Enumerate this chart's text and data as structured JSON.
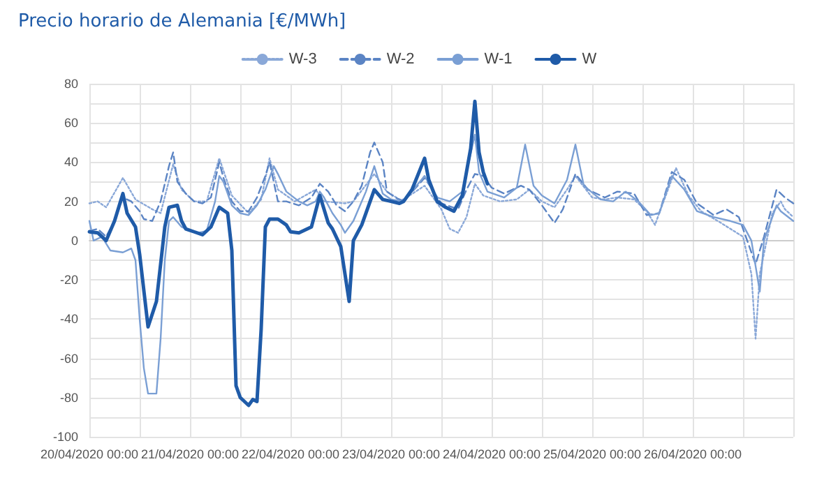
{
  "chart_data": {
    "type": "line",
    "title": "Precio horario de Alemania [€/MWh]",
    "xlim": [
      "2020-04-20T00:00",
      "2020-04-27T00:00"
    ],
    "xticks": [
      {
        "value": "2020-04-20T00:00",
        "label": "20/04/2020 00:00"
      },
      {
        "value": "2020-04-20T12:00",
        "label": null
      },
      {
        "value": "2020-04-21T00:00",
        "label": "21/04/2020 00:00"
      },
      {
        "value": "2020-04-21T12:00",
        "label": null
      },
      {
        "value": "2020-04-22T00:00",
        "label": "22/04/2020 00:00"
      },
      {
        "value": "2020-04-22T12:00",
        "label": null
      },
      {
        "value": "2020-04-23T00:00",
        "label": "23/04/2020 00:00"
      },
      {
        "value": "2020-04-23T12:00",
        "label": null
      },
      {
        "value": "2020-04-24T00:00",
        "label": "24/04/2020 00:00"
      },
      {
        "value": "2020-04-24T12:00",
        "label": null
      },
      {
        "value": "2020-04-25T00:00",
        "label": "25/04/2020 00:00"
      },
      {
        "value": "2020-04-25T12:00",
        "label": null
      },
      {
        "value": "2020-04-26T00:00",
        "label": "26/04/2020 00:00"
      },
      {
        "value": "2020-04-26T12:00",
        "label": null
      },
      {
        "value": "2020-04-27T00:00",
        "label": null
      }
    ],
    "ylim": [
      -100,
      80
    ],
    "yticks": [
      -100,
      {
        "value": -90,
        "label": null
      },
      -80,
      {
        "value": -70,
        "label": null
      },
      -60,
      {
        "value": -50,
        "label": null
      },
      -40,
      {
        "value": -30,
        "label": null
      },
      -20,
      {
        "value": -10,
        "label": null
      },
      0,
      {
        "value": 10,
        "label": null
      },
      20,
      {
        "value": 30,
        "label": null
      },
      40,
      {
        "value": 50,
        "label": null
      },
      60,
      {
        "value": 70,
        "label": null
      },
      80
    ],
    "grid": true,
    "legend": "top",
    "marker": "none",
    "series": [
      {
        "name": "W-3",
        "color": "#8aa8d8",
        "line_style": "dotted",
        "x": [
          "2020-04-20T00:00",
          "2020-04-20T02:00",
          "2020-04-20T04:00",
          "2020-04-20T08:00",
          "2020-04-20T11:00",
          "2020-04-20T15:00",
          "2020-04-20T17:00",
          "2020-04-20T20:00",
          "2020-04-20T22:00",
          "2020-04-21T01:00",
          "2020-04-21T04:00",
          "2020-04-21T07:00",
          "2020-04-21T10:00",
          "2020-04-21T14:00",
          "2020-04-21T17:00",
          "2020-04-21T19:00",
          "2020-04-21T21:00",
          "2020-04-22T01:00",
          "2020-04-22T06:00",
          "2020-04-22T08:00",
          "2020-04-22T13:00",
          "2020-04-22T15:00",
          "2020-04-22T20:00",
          "2020-04-22T23:00",
          "2020-04-23T02:00",
          "2020-04-23T03:00",
          "2020-04-23T08:00",
          "2020-04-23T12:00",
          "2020-04-23T14:00",
          "2020-04-23T16:00",
          "2020-04-23T18:00",
          "2020-04-23T20:00",
          "2020-04-23T22:00",
          "2020-04-24T02:00",
          "2020-04-24T06:00",
          "2020-04-24T09:00",
          "2020-04-24T12:00",
          "2020-04-24T15:00",
          "2020-04-24T18:00",
          "2020-04-24T20:00",
          "2020-04-25T00:00",
          "2020-04-25T03:00",
          "2020-04-25T06:00",
          "2020-04-25T10:00",
          "2020-04-25T13:00",
          "2020-04-25T15:00",
          "2020-04-25T16:00",
          "2020-04-25T20:00",
          "2020-04-25T23:00",
          "2020-04-26T02:00",
          "2020-04-26T06:00",
          "2020-04-26T09:00",
          "2020-04-26T12:00",
          "2020-04-26T14:00",
          "2020-04-26T15:00",
          "2020-04-26T16:00",
          "2020-04-26T19:00",
          "2020-04-26T21:00",
          "2020-04-26T22:00",
          "2020-04-27T00:00"
        ],
        "values": [
          19,
          20,
          17,
          32,
          21,
          16,
          14,
          39,
          26,
          20,
          20,
          42,
          23,
          14,
          21,
          42,
          26,
          20,
          26,
          20,
          19,
          20,
          34,
          25,
          21,
          21,
          28,
          16,
          6,
          4,
          12,
          29,
          23,
          20,
          21,
          26,
          20,
          17,
          26,
          33,
          22,
          21,
          22,
          21,
          15,
          8,
          14,
          37,
          23,
          15,
          10,
          6,
          2,
          -17,
          -50,
          -17,
          14,
          20,
          16,
          12
        ]
      },
      {
        "name": "W-2",
        "color": "#5b84c4",
        "line_style": "dashed",
        "x": [
          "2020-04-20T00:00",
          "2020-04-20T02:00",
          "2020-04-20T04:00",
          "2020-04-20T06:00",
          "2020-04-20T08:00",
          "2020-04-20T10:00",
          "2020-04-20T12:00",
          "2020-04-20T13:00",
          "2020-04-20T15:00",
          "2020-04-20T17:00",
          "2020-04-20T19:00",
          "2020-04-20T20:00",
          "2020-04-20T21:00",
          "2020-04-20T23:00",
          "2020-04-21T01:00",
          "2020-04-21T03:00",
          "2020-04-21T05:00",
          "2020-04-21T07:00",
          "2020-04-21T08:00",
          "2020-04-21T10:00",
          "2020-04-21T12:00",
          "2020-04-21T14:00",
          "2020-04-21T16:00",
          "2020-04-21T18:00",
          "2020-04-21T19:00",
          "2020-04-21T21:00",
          "2020-04-21T23:00",
          "2020-04-22T02:00",
          "2020-04-22T05:00",
          "2020-04-22T07:00",
          "2020-04-22T09:00",
          "2020-04-22T11:00",
          "2020-04-22T13:00",
          "2020-04-22T15:00",
          "2020-04-22T17:00",
          "2020-04-22T19:00",
          "2020-04-22T20:00",
          "2020-04-22T22:00",
          "2020-04-22T23:00",
          "2020-04-23T01:00",
          "2020-04-23T03:00",
          "2020-04-23T08:00",
          "2020-04-23T12:00",
          "2020-04-23T16:00",
          "2020-04-23T18:00",
          "2020-04-23T20:00",
          "2020-04-23T22:00",
          "2020-04-24T00:00",
          "2020-04-24T03:00",
          "2020-04-24T07:00",
          "2020-04-24T09:00",
          "2020-04-24T12:00",
          "2020-04-24T15:00",
          "2020-04-24T17:00",
          "2020-04-24T20:00",
          "2020-04-24T23:00",
          "2020-04-25T03:00",
          "2020-04-25T06:00",
          "2020-04-25T10:00",
          "2020-04-25T13:00",
          "2020-04-25T16:00",
          "2020-04-25T19:00",
          "2020-04-25T22:00",
          "2020-04-26T01:00",
          "2020-04-26T05:00",
          "2020-04-26T08:00",
          "2020-04-26T11:00",
          "2020-04-26T13:00",
          "2020-04-26T15:00",
          "2020-04-26T17:00",
          "2020-04-26T20:00",
          "2020-04-26T22:00",
          "2020-04-27T00:00"
        ],
        "values": [
          5,
          6,
          2,
          10,
          22,
          20,
          15,
          11,
          10,
          20,
          38,
          45,
          30,
          24,
          20,
          19,
          22,
          40,
          32,
          20,
          15,
          15,
          22,
          33,
          40,
          20,
          20,
          18,
          22,
          29,
          25,
          18,
          15,
          20,
          28,
          45,
          50,
          40,
          25,
          22,
          20,
          32,
          19,
          16,
          26,
          34,
          33,
          27,
          24,
          28,
          26,
          18,
          9,
          16,
          34,
          26,
          22,
          25,
          24,
          13,
          14,
          35,
          31,
          19,
          13,
          16,
          12,
          0,
          -12,
          2,
          26,
          22,
          19
        ]
      },
      {
        "name": "W-1",
        "color": "#7a9fd4",
        "line_style": "solid",
        "x": [
          "2020-04-20T00:00",
          "2020-04-20T01:00",
          "2020-04-20T03:00",
          "2020-04-20T05:00",
          "2020-04-20T08:00",
          "2020-04-20T10:00",
          "2020-04-20T11:00",
          "2020-04-20T12:00",
          "2020-04-20T13:00",
          "2020-04-20T14:00",
          "2020-04-20T16:00",
          "2020-04-20T17:00",
          "2020-04-20T18:00",
          "2020-04-20T19:00",
          "2020-04-20T20:00",
          "2020-04-20T22:00",
          "2020-04-21T00:00",
          "2020-04-21T02:00",
          "2020-04-21T04:00",
          "2020-04-21T06:00",
          "2020-04-21T07:00",
          "2020-04-21T08:00",
          "2020-04-21T10:00",
          "2020-04-21T12:00",
          "2020-04-21T14:00",
          "2020-04-21T16:00",
          "2020-04-21T18:00",
          "2020-04-21T20:00",
          "2020-04-21T21:00",
          "2020-04-21T23:00",
          "2020-04-22T02:00",
          "2020-04-22T04:00",
          "2020-04-22T06:00",
          "2020-04-22T07:00",
          "2020-04-22T08:00",
          "2020-04-22T10:00",
          "2020-04-22T12:00",
          "2020-04-22T13:00",
          "2020-04-22T15:00",
          "2020-04-22T18:00",
          "2020-04-22T20:00",
          "2020-04-22T22:00",
          "2020-04-23T00:00",
          "2020-04-23T03:00",
          "2020-04-23T08:00",
          "2020-04-23T11:00",
          "2020-04-23T14:00",
          "2020-04-23T17:00",
          "2020-04-23T20:00",
          "2020-04-23T21:00",
          "2020-04-23T23:00",
          "2020-04-24T03:00",
          "2020-04-24T06:00",
          "2020-04-24T08:00",
          "2020-04-24T10:00",
          "2020-04-24T12:00",
          "2020-04-24T15:00",
          "2020-04-24T18:00",
          "2020-04-24T20:00",
          "2020-04-24T22:00",
          "2020-04-25T02:00",
          "2020-04-25T05:00",
          "2020-04-25T08:00",
          "2020-04-25T11:00",
          "2020-04-25T14:00",
          "2020-04-25T16:00",
          "2020-04-25T19:00",
          "2020-04-25T22:00",
          "2020-04-26T01:00",
          "2020-04-26T05:00",
          "2020-04-26T09:00",
          "2020-04-26T12:00",
          "2020-04-26T14:00",
          "2020-04-26T16:00",
          "2020-04-26T17:00",
          "2020-04-26T20:00",
          "2020-04-26T21:00",
          "2020-04-27T00:00"
        ],
        "values": [
          10,
          0,
          2,
          -5,
          -6,
          -4,
          -10,
          -40,
          -65,
          -78,
          -78,
          -50,
          -10,
          10,
          12,
          7,
          5,
          4,
          5,
          20,
          33,
          30,
          18,
          14,
          13,
          18,
          26,
          38,
          34,
          25,
          20,
          18,
          20,
          25,
          22,
          14,
          8,
          4,
          10,
          25,
          38,
          24,
          21,
          20,
          33,
          22,
          20,
          25,
          54,
          35,
          25,
          22,
          27,
          49,
          28,
          23,
          19,
          31,
          49,
          28,
          21,
          20,
          25,
          20,
          13,
          14,
          33,
          26,
          15,
          12,
          10,
          8,
          0,
          -26,
          0,
          18,
          15,
          10
        ]
      },
      {
        "name": "W",
        "color": "#1f5ba8",
        "line_style": "solid",
        "x": [
          "2020-04-20T00:00",
          "2020-04-20T02:00",
          "2020-04-20T04:00",
          "2020-04-20T06:00",
          "2020-04-20T08:00",
          "2020-04-20T09:00",
          "2020-04-20T11:00",
          "2020-04-20T12:00",
          "2020-04-20T14:00",
          "2020-04-20T16:00",
          "2020-04-20T18:00",
          "2020-04-20T19:00",
          "2020-04-20T21:00",
          "2020-04-20T22:00",
          "2020-04-20T23:00",
          "2020-04-21T01:00",
          "2020-04-21T03:00",
          "2020-04-21T05:00",
          "2020-04-21T07:00",
          "2020-04-21T09:00",
          "2020-04-21T10:00",
          "2020-04-21T11:00",
          "2020-04-21T12:00",
          "2020-04-21T14:00",
          "2020-04-21T15:00",
          "2020-04-21T16:00",
          "2020-04-21T17:00",
          "2020-04-21T18:00",
          "2020-04-21T19:00",
          "2020-04-21T21:00",
          "2020-04-21T23:00",
          "2020-04-22T00:00",
          "2020-04-22T02:00",
          "2020-04-22T05:00",
          "2020-04-22T07:00",
          "2020-04-22T09:00",
          "2020-04-22T10:00",
          "2020-04-22T12:00",
          "2020-04-22T14:00",
          "2020-04-22T15:00",
          "2020-04-22T17:00",
          "2020-04-22T20:00",
          "2020-04-22T22:00",
          "2020-04-23T00:00",
          "2020-04-23T02:00",
          "2020-04-23T03:00",
          "2020-04-23T05:00",
          "2020-04-23T08:00",
          "2020-04-23T09:00",
          "2020-04-23T11:00",
          "2020-04-23T13:00",
          "2020-04-23T15:00",
          "2020-04-23T17:00",
          "2020-04-23T19:00",
          "2020-04-23T20:00",
          "2020-04-23T21:00",
          "2020-04-23T22:00",
          "2020-04-23T23:00"
        ],
        "values": [
          4.5,
          4,
          0,
          10,
          24,
          14,
          7,
          -7,
          -44,
          -31,
          7,
          17,
          18,
          10,
          6,
          4.5,
          3,
          7,
          17,
          14,
          -5,
          -74,
          -80,
          -84,
          -81,
          -82,
          -45,
          7,
          11,
          11,
          8,
          4.5,
          4,
          7,
          23,
          9,
          6,
          -3,
          -31,
          0,
          8,
          26,
          21,
          20,
          19,
          20,
          26,
          42,
          31,
          20,
          17,
          15,
          23,
          47,
          71,
          45,
          35,
          29
        ]
      }
    ]
  }
}
